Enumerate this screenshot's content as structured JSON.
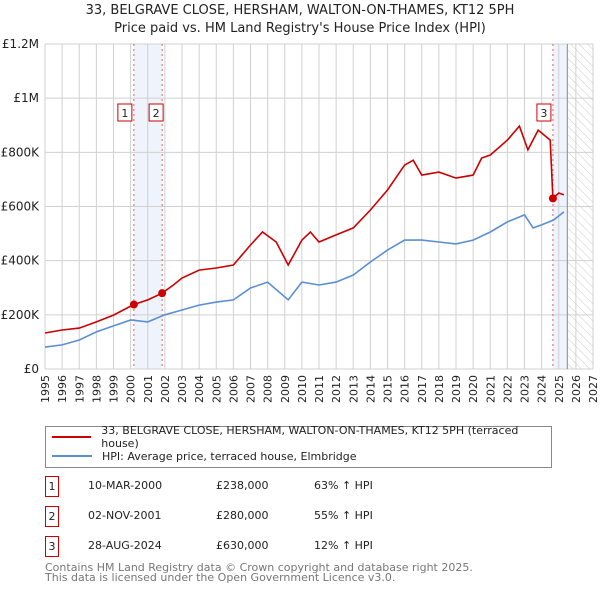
{
  "chart_data": {
    "type": "line",
    "title": "33, BELGRAVE CLOSE, HERSHAM, WALTON-ON-THAMES, KT12 5PH",
    "subtitle": "Price paid vs. HM Land Registry's House Price Index (HPI)",
    "xlim": [
      1995,
      2027
    ],
    "ylim": [
      0,
      1200000
    ],
    "x_ticks": [
      "1995",
      "1996",
      "1997",
      "1998",
      "1999",
      "2000",
      "2001",
      "2002",
      "2003",
      "2004",
      "2005",
      "2006",
      "2007",
      "2008",
      "2009",
      "2010",
      "2011",
      "2012",
      "2013",
      "2014",
      "2015",
      "2016",
      "2017",
      "2018",
      "2019",
      "2020",
      "2021",
      "2022",
      "2023",
      "2024",
      "2025",
      "2026",
      "2027"
    ],
    "y_ticks": [
      {
        "v": 0,
        "label": "£0"
      },
      {
        "v": 200000,
        "label": "£200K"
      },
      {
        "v": 400000,
        "label": "£400K"
      },
      {
        "v": 600000,
        "label": "£600K"
      },
      {
        "v": 800000,
        "label": "£800K"
      },
      {
        "v": 1000000,
        "label": "£1M"
      },
      {
        "v": 1200000,
        "label": "£1.2M"
      }
    ],
    "grid": true,
    "series": [
      {
        "name": "33, BELGRAVE CLOSE, HERSHAM, WALTON-ON-THAMES, KT12 5PH (terraced house)",
        "color": "#cc0000",
        "x": [
          1995,
          1996,
          1997,
          1998,
          1999,
          2000.19,
          2001,
          2001.84,
          2002.5,
          2003,
          2004,
          2005,
          2006,
          2007,
          2007.7,
          2008.5,
          2009.2,
          2010,
          2010.5,
          2011,
          2012,
          2013,
          2014,
          2015,
          2016,
          2016.5,
          2017,
          2018,
          2019,
          2020,
          2020.5,
          2021,
          2022,
          2022.7,
          2023.2,
          2023.8,
          2024.5,
          2024.66,
          2025,
          2025.3
        ],
        "y": [
          133000,
          144000,
          151000,
          174000,
          199000,
          238000,
          255000,
          280000,
          310000,
          336000,
          365000,
          373000,
          384000,
          458000,
          506000,
          469000,
          384000,
          476000,
          506000,
          469000,
          495000,
          521000,
          587000,
          661000,
          753000,
          771000,
          716000,
          727000,
          705000,
          716000,
          779000,
          790000,
          845000,
          897000,
          809000,
          882000,
          845000,
          630000,
          650000,
          643000
        ]
      },
      {
        "name": "HPI: Average price, terraced house, Elmbridge",
        "color": "#5b8fd4",
        "x": [
          1995,
          1996,
          1997,
          1998,
          1999,
          2000,
          2001,
          2002,
          2003,
          2004,
          2005,
          2006,
          2007,
          2008,
          2009.2,
          2010,
          2011,
          2012,
          2013,
          2014,
          2015,
          2016,
          2017,
          2018,
          2019,
          2020,
          2021,
          2022,
          2023,
          2023.5,
          2024,
          2024.7,
          2025.3
        ],
        "y": [
          81000,
          89000,
          107000,
          137000,
          159000,
          181000,
          174000,
          200000,
          218000,
          236000,
          247000,
          255000,
          299000,
          321000,
          255000,
          321000,
          310000,
          321000,
          347000,
          395000,
          439000,
          476000,
          476000,
          469000,
          462000,
          476000,
          506000,
          543000,
          569000,
          521000,
          532000,
          550000,
          580000
        ]
      }
    ],
    "sales": [
      {
        "num": "1",
        "x": 2000.19,
        "date": "10-MAR-2000",
        "price": "£238,000",
        "value": 238000,
        "hpi": "63% ↑ HPI"
      },
      {
        "num": "2",
        "x": 2001.84,
        "date": "02-NOV-2001",
        "price": "£280,000",
        "value": 280000,
        "hpi": "55% ↑ HPI"
      },
      {
        "num": "3",
        "x": 2024.66,
        "date": "28-AUG-2024",
        "price": "£630,000",
        "value": 630000,
        "hpi": "12% ↑ HPI"
      }
    ],
    "forecast_start": 2025.5,
    "legend_placement": "below"
  },
  "footer": [
    "Contains HM Land Registry data © Crown copyright and database right 2025.",
    "This data is licensed under the Open Government Licence v3.0."
  ]
}
